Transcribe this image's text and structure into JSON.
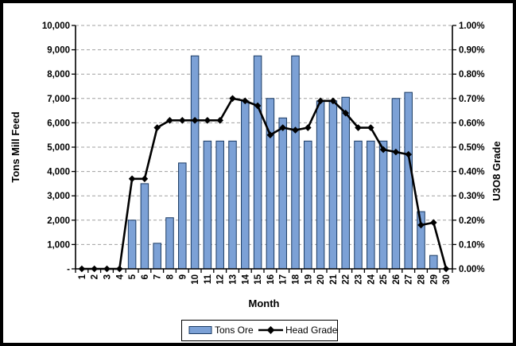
{
  "chart_data": {
    "type": "combo-bar-line",
    "title": "",
    "xlabel": "Month",
    "ylabel_left": "Tons Mill Feed",
    "ylabel_right": "U3O8 Grade",
    "categories": [
      "1",
      "2",
      "3",
      "4",
      "5",
      "6",
      "7",
      "8",
      "9",
      "10",
      "11",
      "12",
      "13",
      "14",
      "15",
      "16",
      "17",
      "18",
      "19",
      "20",
      "21",
      "22",
      "23",
      "24",
      "25",
      "26",
      "27",
      "28",
      "29",
      "30"
    ],
    "series": [
      {
        "name": "Tons Ore",
        "type": "bar",
        "axis": "left",
        "values": [
          0,
          0,
          0,
          0,
          2000,
          3500,
          1050,
          2100,
          4350,
          8750,
          5250,
          5250,
          5250,
          6900,
          8750,
          7000,
          6200,
          8750,
          5250,
          6900,
          6900,
          7050,
          5250,
          5250,
          5250,
          7000,
          7250,
          2350,
          550,
          0
        ]
      },
      {
        "name": "Head Grade",
        "type": "line",
        "axis": "right",
        "marker": "diamond",
        "values": [
          0,
          0,
          0,
          0,
          0.37,
          0.37,
          0.58,
          0.61,
          0.61,
          0.61,
          0.61,
          0.61,
          0.7,
          0.69,
          0.67,
          0.55,
          0.58,
          0.57,
          0.58,
          0.69,
          0.69,
          0.64,
          0.58,
          0.58,
          0.49,
          0.48,
          0.47,
          0.18,
          0.19,
          0
        ]
      }
    ],
    "left_axis": {
      "min": 0,
      "max": 10000,
      "step": 1000,
      "tick_labels": [
        "-",
        "1,000",
        "2,000",
        "3,000",
        "4,000",
        "5,000",
        "6,000",
        "7,000",
        "8,000",
        "9,000",
        "10,000"
      ]
    },
    "right_axis": {
      "min": 0,
      "max": 1.0,
      "step": 0.1,
      "tick_labels": [
        "0.00%",
        "0.10%",
        "0.20%",
        "0.30%",
        "0.40%",
        "0.50%",
        "0.60%",
        "0.70%",
        "0.80%",
        "0.90%",
        "1.00%"
      ]
    },
    "grid": "horizontal-dashed",
    "legend_position": "bottom-center"
  },
  "legend": {
    "items": [
      {
        "label": "Tons Ore",
        "swatch": "bar-swatch"
      },
      {
        "label": "Head Grade",
        "swatch": "line-diamond-swatch"
      }
    ]
  },
  "colors": {
    "bar_fill": "#7CA1D6",
    "bar_border": "#1A3A63",
    "line": "#000000",
    "gridline": "#A0A0A0",
    "frame": "#000000",
    "background": "#FFFFFF"
  }
}
